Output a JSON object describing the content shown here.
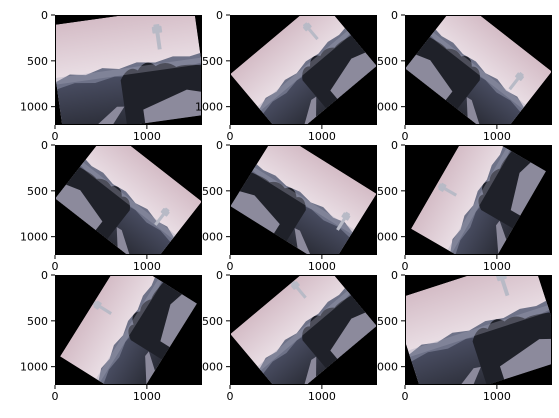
{
  "figure": {
    "background": "#ffffff"
  },
  "chart_data": {
    "type": "image_grid",
    "rows": 3,
    "cols": 3,
    "panels": [
      {
        "position": "row1-col1",
        "rotation_deg": -8,
        "scale": 1.0,
        "flip": false,
        "tower": [
          0.69,
          0.12
        ]
      },
      {
        "position": "row1-col2",
        "rotation_deg": -40,
        "scale": 0.8,
        "flip": false,
        "tower": [
          0.72,
          0.1
        ]
      },
      {
        "position": "row1-col3",
        "rotation_deg": 38,
        "scale": 0.8,
        "flip": true,
        "tower": [
          0.15,
          0.22
        ]
      },
      {
        "position": "row2-col1",
        "rotation_deg": 38,
        "scale": 0.8,
        "flip": true,
        "tower": [
          0.15,
          0.3
        ]
      },
      {
        "position": "row2-col2",
        "rotation_deg": 32,
        "scale": 0.8,
        "flip": true,
        "tower": [
          0.08,
          0.35
        ]
      },
      {
        "position": "row2-col3",
        "rotation_deg": -60,
        "scale": 0.8,
        "flip": false,
        "tower": [
          0.4,
          0.02
        ]
      },
      {
        "position": "row3-col1",
        "rotation_deg": -58,
        "scale": 0.8,
        "flip": false,
        "tower": [
          0.5,
          0.0
        ]
      },
      {
        "position": "row3-col2",
        "rotation_deg": -40,
        "scale": 0.8,
        "flip": false,
        "tower": [
          0.65,
          0.0
        ]
      },
      {
        "position": "row3-col3",
        "rotation_deg": -18,
        "scale": 1.0,
        "flip": false,
        "tower": [
          0.72,
          0.05
        ]
      }
    ],
    "axes": {
      "xlim": [
        0,
        1600
      ],
      "ylim": [
        1200,
        0
      ],
      "xticks": [
        0,
        1000
      ],
      "yticks": [
        0,
        500,
        1000
      ],
      "xtick_labels": [
        "0",
        "1000"
      ],
      "ytick_labels": [
        "0",
        "500",
        "1000"
      ]
    },
    "colors": {
      "canvas": "#000000",
      "sky_top": "#d4bcc6",
      "sky_mid": "#ece2e8",
      "sky_low": "#f6eef1",
      "haze": "#a3a3b8",
      "hills": "#6e7288",
      "land_top": "#4a4e63",
      "land_bottom": "#2a2c36",
      "trees": "#1f2129",
      "road": "#8c8a9c",
      "tower": "#b8bac6"
    }
  }
}
